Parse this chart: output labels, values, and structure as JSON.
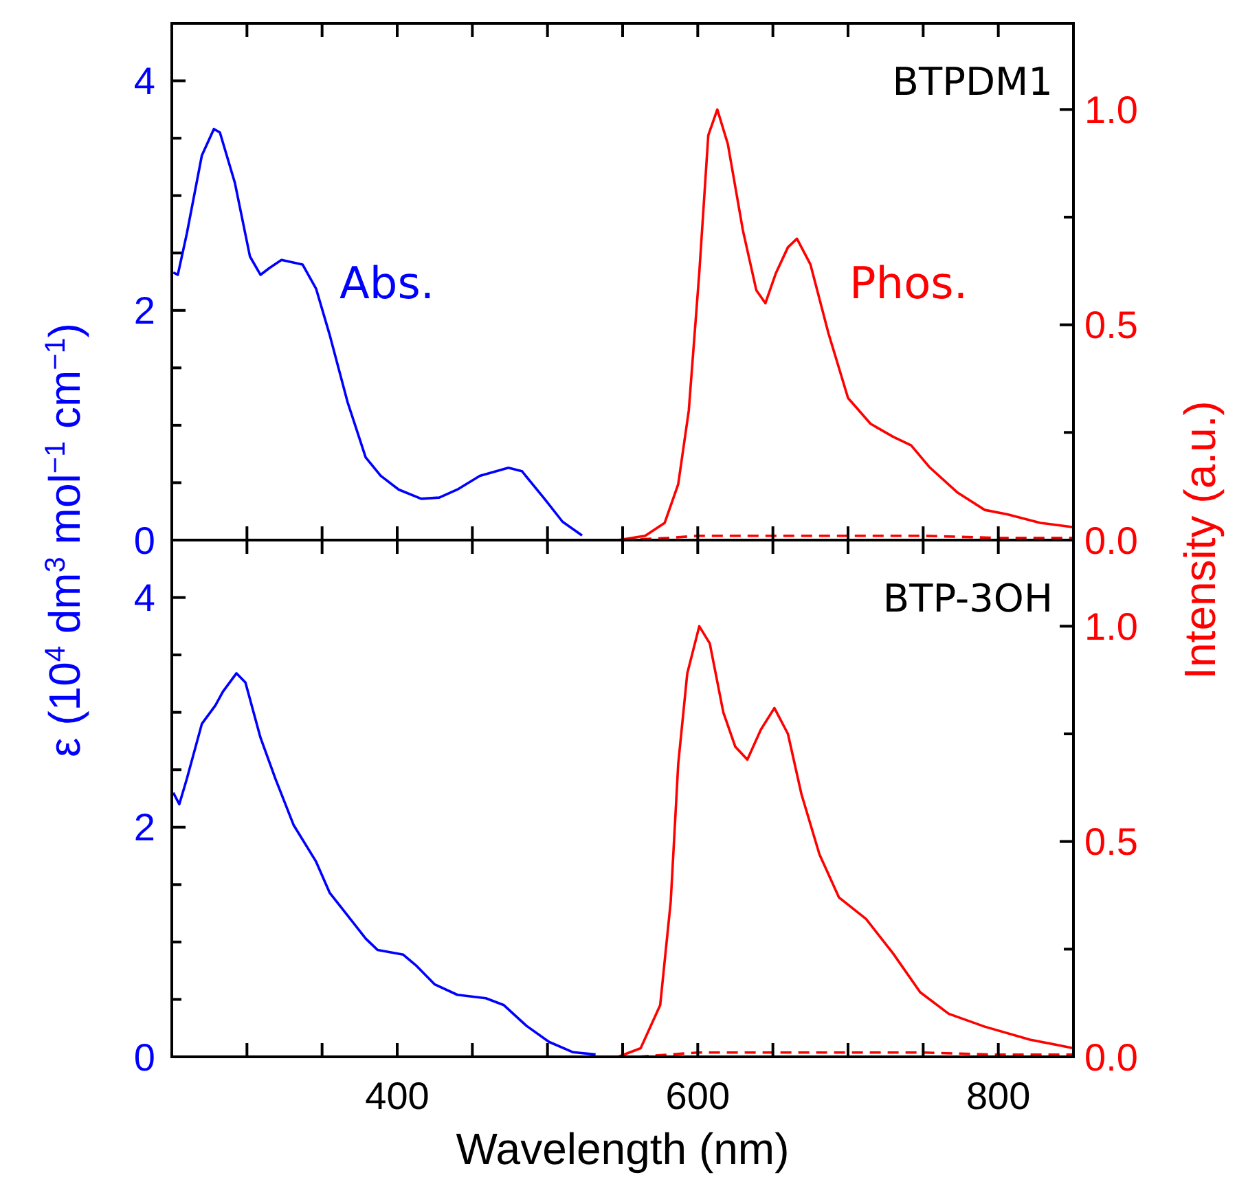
{
  "chart_data": [
    {
      "type": "line",
      "annotations": [
        "BTPDM1"
      ],
      "xlim": [
        250,
        850
      ],
      "xticks": [
        {
          "value": 300,
          "label": null
        },
        {
          "value": 350,
          "label": null
        },
        {
          "value": 400,
          "label": null
        },
        {
          "value": 450,
          "label": null
        },
        {
          "value": 500,
          "label": null
        },
        {
          "value": 550,
          "label": null
        },
        {
          "value": 600,
          "label": null
        },
        {
          "value": 650,
          "label": null
        },
        {
          "value": 700,
          "label": null
        },
        {
          "value": 750,
          "label": null
        },
        {
          "value": 800,
          "label": null
        }
      ],
      "ylim": [
        0,
        4.5
      ],
      "yticks": [
        0,
        {
          "value": 0.5,
          "label": null
        },
        {
          "value": 1,
          "label": null
        },
        {
          "value": 1.5,
          "label": null
        },
        2,
        {
          "value": 2.5,
          "label": null
        },
        {
          "value": 3,
          "label": null
        },
        {
          "value": 3.5,
          "label": null
        },
        4
      ],
      "y2lim": [
        0,
        1.2
      ],
      "y2ticks": [
        {
          "value": 0,
          "label": "0.0"
        },
        {
          "value": 0.25,
          "label": null
        },
        {
          "value": 0.5,
          "label": "0.5"
        },
        {
          "value": 0.75,
          "label": null
        },
        {
          "value": 1,
          "label": "1.0"
        }
      ],
      "tick_labels": "y",
      "series": [
        {
          "name": "Abs.",
          "color": "#0000ff",
          "x": [
            251,
            254,
            260,
            270,
            278,
            282,
            292,
            302,
            309,
            315,
            323,
            337,
            346,
            355,
            367,
            379,
            389,
            401,
            416,
            428,
            440,
            455,
            474,
            483,
            498,
            510,
            523
          ],
          "values": [
            2.33,
            2.31,
            2.67,
            3.35,
            3.58,
            3.55,
            3.11,
            2.47,
            2.31,
            2.37,
            2.44,
            2.4,
            2.19,
            1.79,
            1.2,
            0.72,
            0.56,
            0.44,
            0.36,
            0.37,
            0.44,
            0.56,
            0.63,
            0.6,
            0.36,
            0.16,
            0.04
          ]
        },
        {
          "name": "Phos.",
          "color": "#ff0000",
          "axis": "y2",
          "x": [
            547,
            565,
            578,
            587,
            594,
            601,
            607,
            613,
            620,
            630,
            639,
            645,
            652,
            660,
            666,
            675,
            687,
            700,
            715,
            730,
            742,
            754,
            773,
            791,
            806,
            828,
            850
          ],
          "values": [
            0,
            0.01,
            0.04,
            0.13,
            0.3,
            0.62,
            0.94,
            1.0,
            0.92,
            0.72,
            0.58,
            0.55,
            0.62,
            0.68,
            0.7,
            0.64,
            0.48,
            0.33,
            0.27,
            0.24,
            0.22,
            0.17,
            0.11,
            0.07,
            0.06,
            0.04,
            0.03
          ]
        },
        {
          "color": "#ff0000",
          "axis": "y2",
          "line_style": "dashed",
          "x": [
            550,
            580,
            600,
            650,
            700,
            750,
            800,
            850
          ],
          "values": [
            0,
            0.005,
            0.01,
            0.01,
            0.01,
            0.01,
            0.005,
            0.005
          ]
        }
      ]
    },
    {
      "type": "line",
      "xlabel": "Wavelength (nm)",
      "ylabel": "ε (10$^{4}$ dm$^{3}$ mol$^{−1}$ cm$^{−1}$)",
      "y2label": "Intensity (a.u.)",
      "annotations": [
        "BTP-3OH"
      ],
      "xlim": [
        250,
        850
      ],
      "xticks": [
        {
          "value": 300,
          "label": null
        },
        {
          "value": 350,
          "label": null
        },
        {
          "value": 400,
          "label": "400"
        },
        {
          "value": 450,
          "label": null
        },
        {
          "value": 500,
          "label": null
        },
        {
          "value": 550,
          "label": null
        },
        {
          "value": 600,
          "label": "600"
        },
        {
          "value": 650,
          "label": null
        },
        {
          "value": 700,
          "label": null
        },
        {
          "value": 750,
          "label": null
        },
        {
          "value": 800,
          "label": "800"
        }
      ],
      "ylim": [
        0,
        4.5
      ],
      "yticks": [
        0,
        {
          "value": 0.5,
          "label": null
        },
        {
          "value": 1,
          "label": null
        },
        {
          "value": 1.5,
          "label": null
        },
        2,
        {
          "value": 2.5,
          "label": null
        },
        {
          "value": 3,
          "label": null
        },
        {
          "value": 3.5,
          "label": null
        },
        4
      ],
      "y2lim": [
        0,
        1.2
      ],
      "y2ticks": [
        {
          "value": 0,
          "label": "0.0"
        },
        {
          "value": 0.25,
          "label": null
        },
        {
          "value": 0.5,
          "label": "0.5"
        },
        {
          "value": 0.75,
          "label": null
        },
        {
          "value": 1,
          "label": "1.0"
        }
      ],
      "series": [
        {
          "color": "#0000ff",
          "x": [
            251,
            255,
            260,
            270,
            279,
            284,
            293,
            299,
            309,
            319,
            331,
            346,
            355,
            367,
            379,
            387,
            404,
            413,
            425,
            440,
            459,
            471,
            486,
            501,
            517,
            532
          ],
          "values": [
            2.3,
            2.2,
            2.42,
            2.9,
            3.06,
            3.18,
            3.34,
            3.26,
            2.78,
            2.42,
            2.02,
            1.7,
            1.43,
            1.23,
            1.03,
            0.93,
            0.89,
            0.79,
            0.63,
            0.54,
            0.51,
            0.45,
            0.27,
            0.13,
            0.04,
            0.02
          ]
        },
        {
          "color": "#ff0000",
          "axis": "y2",
          "x": [
            547,
            562,
            575,
            582,
            587,
            593,
            601,
            608,
            617,
            625,
            633,
            642,
            651,
            660,
            669,
            681,
            694,
            712,
            730,
            748,
            767,
            791,
            821,
            850
          ],
          "values": [
            0,
            0.02,
            0.12,
            0.36,
            0.68,
            0.89,
            1.0,
            0.96,
            0.8,
            0.72,
            0.69,
            0.76,
            0.81,
            0.75,
            0.61,
            0.47,
            0.37,
            0.32,
            0.24,
            0.15,
            0.1,
            0.07,
            0.04,
            0.02
          ]
        },
        {
          "color": "#ff0000",
          "axis": "y2",
          "line_style": "dashed",
          "x": [
            560,
            600,
            650,
            700,
            750,
            800,
            850
          ],
          "values": [
            0,
            0.01,
            0.01,
            0.01,
            0.01,
            0.005,
            0.005
          ]
        }
      ]
    }
  ]
}
